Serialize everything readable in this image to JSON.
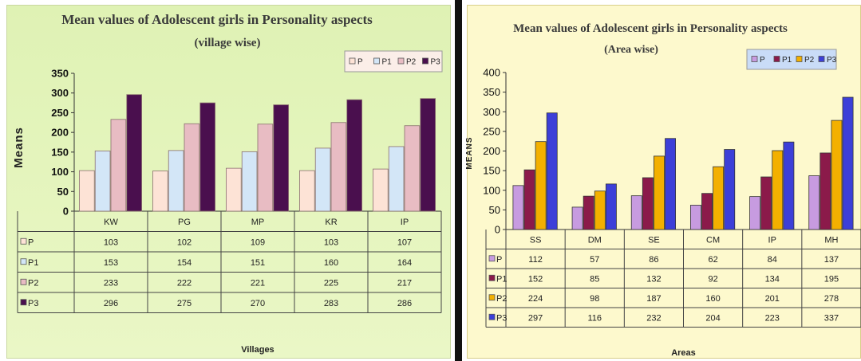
{
  "chart_data": [
    {
      "type": "bar",
      "title": "Mean values of Adolescent girls in Personality aspects",
      "subtitle": "(village wise)",
      "xlabel": "Villages",
      "ylabel": "Means",
      "ylim": [
        0,
        350
      ],
      "yticks": [
        0,
        50,
        100,
        150,
        200,
        250,
        300,
        350
      ],
      "categories": [
        "KW",
        "PG",
        "MP",
        "KR",
        "IP"
      ],
      "grid": false,
      "legend_position": "top-right",
      "series": [
        {
          "name": "P",
          "color": "#fde3d6",
          "values": [
            103,
            102,
            109,
            103,
            107
          ]
        },
        {
          "name": "P1",
          "color": "#d3e6f7",
          "values": [
            153,
            154,
            151,
            160,
            164
          ]
        },
        {
          "name": "P2",
          "color": "#e8bcc3",
          "values": [
            233,
            222,
            221,
            225,
            217
          ]
        },
        {
          "name": "P3",
          "color": "#4a0f4e",
          "values": [
            296,
            275,
            270,
            283,
            286
          ]
        }
      ]
    },
    {
      "type": "bar",
      "title": "Mean values of Adolescent girls in Personality aspects",
      "subtitle": "(Area wise)",
      "xlabel": "Areas",
      "ylabel": "MEANS",
      "ylim": [
        0,
        400
      ],
      "yticks": [
        0,
        50,
        100,
        150,
        200,
        250,
        300,
        350,
        400
      ],
      "categories": [
        "SS",
        "DM",
        "SE",
        "CM",
        "IP",
        "MH"
      ],
      "grid": false,
      "legend_position": "top-right",
      "series": [
        {
          "name": "P",
          "color": "#c79be0",
          "values": [
            112,
            57,
            86,
            62,
            84,
            137
          ]
        },
        {
          "name": "P1",
          "color": "#8b1a4a",
          "values": [
            152,
            85,
            132,
            92,
            134,
            195
          ]
        },
        {
          "name": "P2",
          "color": "#f3b000",
          "values": [
            224,
            98,
            187,
            160,
            201,
            278
          ]
        },
        {
          "name": "P3",
          "color": "#3c3fd8",
          "values": [
            297,
            116,
            232,
            204,
            223,
            337
          ]
        }
      ]
    }
  ],
  "theme": {
    "left_background": "#eaf7c6",
    "left_background_top": "#dff2b4",
    "right_background": "#fdf9cd",
    "left_legend_bg": "#fbeee8",
    "right_legend_bg": "#c9dcf7"
  }
}
